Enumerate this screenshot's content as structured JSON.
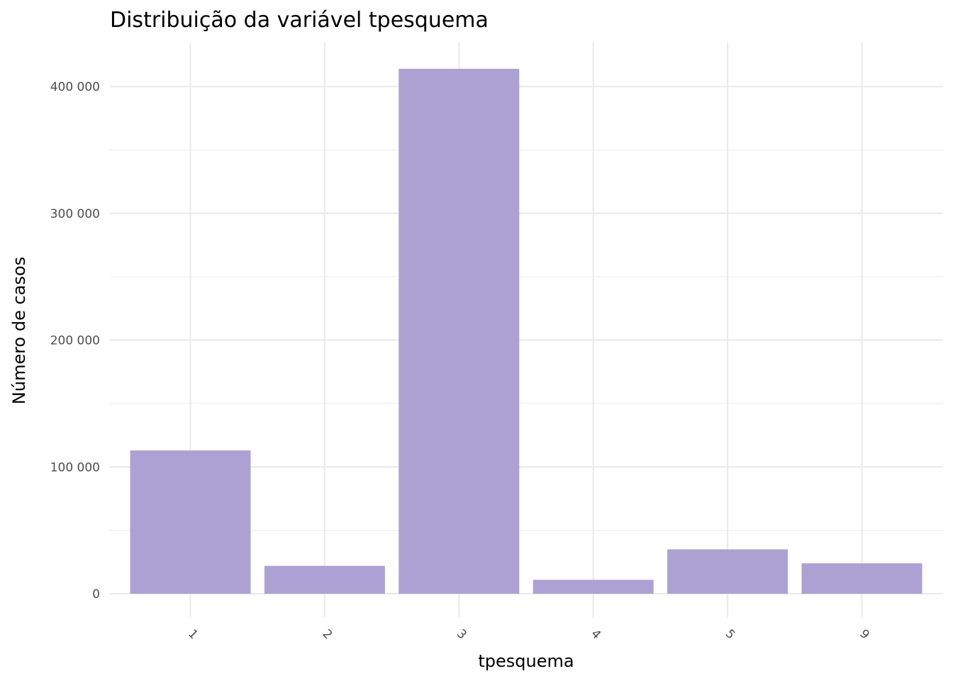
{
  "chart_data": {
    "type": "bar",
    "title": "Distribuição da variável  tpesquema",
    "xlabel": "tpesquema",
    "ylabel": "Número de casos",
    "categories": [
      "1",
      "2",
      "3",
      "4",
      "5",
      "9"
    ],
    "values": [
      113000,
      22000,
      414000,
      11000,
      35000,
      24000
    ],
    "ylim": [
      0,
      430000
    ],
    "yticks": [
      0,
      100000,
      200000,
      300000,
      400000
    ],
    "ytick_labels": [
      "0",
      "100 000",
      "200 000",
      "300 000",
      "400 000"
    ],
    "bar_color": "#aba2d3",
    "grid": true,
    "legend": "none"
  }
}
